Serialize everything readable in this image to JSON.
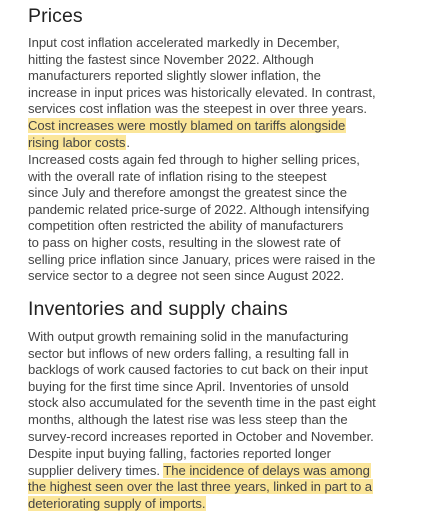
{
  "sections": [
    {
      "heading": "Prices",
      "paragraphs": [
        {
          "lines": [
            [
              {
                "t": "Input cost inflation accelerated markedly in December,",
                "hl": false
              }
            ],
            [
              {
                "t": "hitting the fastest since November 2022. Although",
                "hl": false
              }
            ],
            [
              {
                "t": "manufacturers reported slightly slower inflation, the",
                "hl": false
              }
            ],
            [
              {
                "t": "increase in input prices was historically elevated. In contrast,",
                "hl": false
              }
            ],
            [
              {
                "t": "services cost inflation was the steepest in over three years.",
                "hl": false
              }
            ],
            [
              {
                "t": "Cost increases were mostly blamed on tariffs alongside",
                "hl": true
              }
            ],
            [
              {
                "t": "rising labor costs",
                "hl": true
              },
              {
                "t": ".",
                "hl": false
              }
            ]
          ]
        },
        {
          "lines": [
            [
              {
                "t": "Increased costs again fed through to higher selling prices,",
                "hl": false
              }
            ],
            [
              {
                "t": "with the overall rate of inflation rising to the steepest",
                "hl": false
              }
            ],
            [
              {
                "t": "since July and therefore amongst the greatest since the",
                "hl": false
              }
            ],
            [
              {
                "t": "pandemic related price-surge of 2022. Although intensifying",
                "hl": false
              }
            ],
            [
              {
                "t": "competition often restricted the ability of manufacturers",
                "hl": false
              }
            ],
            [
              {
                "t": "to pass on higher costs, resulting in the slowest rate of",
                "hl": false
              }
            ],
            [
              {
                "t": "selling price inflation since January, prices were raised in the",
                "hl": false
              }
            ],
            [
              {
                "t": "service sector to a degree not seen since August 2022.",
                "hl": false
              }
            ]
          ]
        }
      ]
    },
    {
      "heading": "Inventories and supply chains",
      "paragraphs": [
        {
          "lines": [
            [
              {
                "t": "With output growth remaining solid in the manufacturing",
                "hl": false
              }
            ],
            [
              {
                "t": "sector but inflows of new orders falling, a resulting fall in",
                "hl": false
              }
            ],
            [
              {
                "t": "backlogs of work caused factories to cut back on their input",
                "hl": false
              }
            ],
            [
              {
                "t": "buying for the first time since April. Inventories of unsold",
                "hl": false
              }
            ],
            [
              {
                "t": "stock also accumulated for the seventh time in the past eight",
                "hl": false
              }
            ],
            [
              {
                "t": "months, although the latest rise was less steep than the",
                "hl": false
              }
            ],
            [
              {
                "t": "survey-record increases reported in October and November.",
                "hl": false
              }
            ]
          ]
        },
        {
          "lines": [
            [
              {
                "t": "Despite input buying falling, factories reported longer",
                "hl": false
              }
            ],
            [
              {
                "t": "supplier delivery times. ",
                "hl": false
              },
              {
                "t": "The incidence of delays was among",
                "hl": true
              }
            ],
            [
              {
                "t": "the highest seen over the last three years, linked in part to a",
                "hl": true
              }
            ],
            [
              {
                "t": "deteriorating supply of imports.",
                "hl": true
              }
            ]
          ]
        }
      ]
    }
  ]
}
